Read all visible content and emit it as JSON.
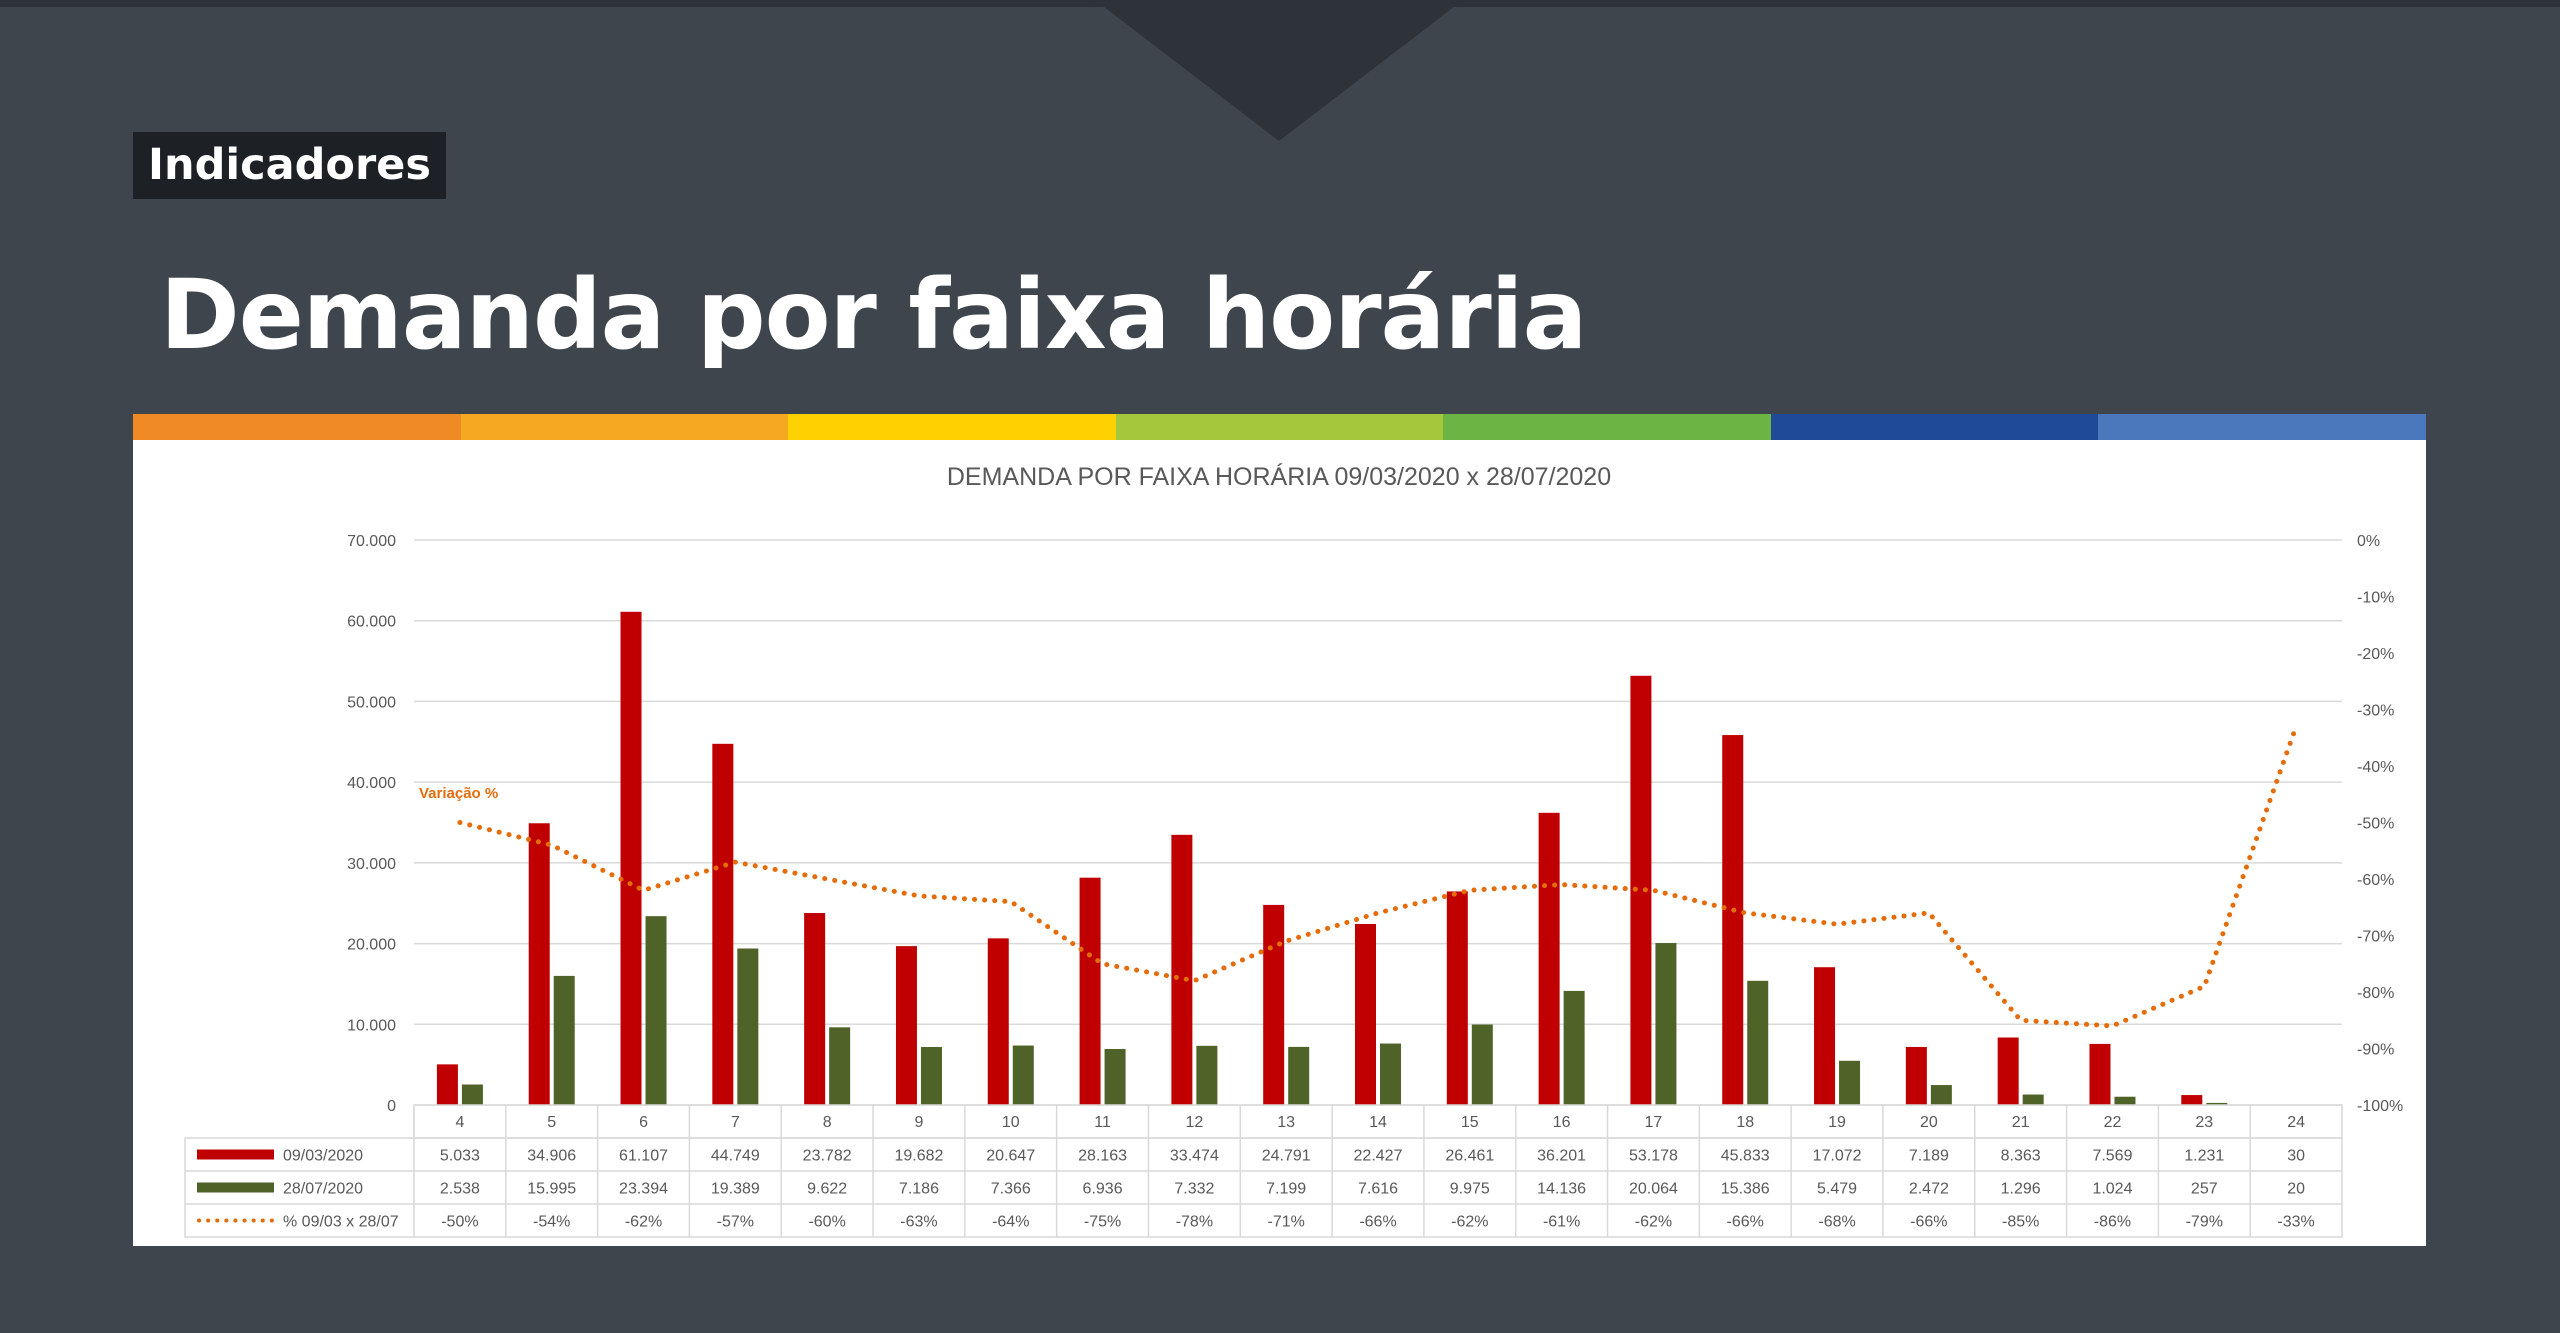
{
  "header": {
    "tag": "Indicadores",
    "title": "Demanda por faixa horária"
  },
  "stripe_colors": [
    "#f08a24",
    "#f7a823",
    "#ffd100",
    "#a5c73b",
    "#6cb545",
    "#1f4a97",
    "#4b77bc"
  ],
  "colors": {
    "series_2020_03": "#c00000",
    "series_2020_07": "#4f6228",
    "variation": "#e46c0a"
  },
  "chart_data": {
    "type": "bar",
    "title": "DEMANDA POR FAIXA HORÁRIA 09/03/2020 x 28/07/2020",
    "categories": [
      "4",
      "5",
      "6",
      "7",
      "8",
      "9",
      "10",
      "11",
      "12",
      "13",
      "14",
      "15",
      "16",
      "17",
      "18",
      "19",
      "20",
      "21",
      "22",
      "23",
      "24"
    ],
    "ylim": [
      0,
      70000
    ],
    "y_ticks": [
      "70.000",
      "60.000",
      "50.000",
      "40.000",
      "30.000",
      "20.000",
      "10.000",
      "0"
    ],
    "y2lim": [
      -100,
      0
    ],
    "y2_ticks": [
      "0%",
      "-10%",
      "-20%",
      "-30%",
      "-40%",
      "-50%",
      "-60%",
      "-70%",
      "-80%",
      "-90%",
      "-100%"
    ],
    "series": [
      {
        "name": "09/03/2020",
        "kind": "bar",
        "axis": "left",
        "values": [
          5033,
          34906,
          61107,
          44749,
          23782,
          19682,
          20647,
          28163,
          33474,
          24791,
          22427,
          26461,
          36201,
          53178,
          45833,
          17072,
          7189,
          8363,
          7569,
          1231,
          30
        ],
        "labels": [
          "5.033",
          "34.906",
          "61.107",
          "44.749",
          "23.782",
          "19.682",
          "20.647",
          "28.163",
          "33.474",
          "24.791",
          "22.427",
          "26.461",
          "36.201",
          "53.178",
          "45.833",
          "17.072",
          "7.189",
          "8.363",
          "7.569",
          "1.231",
          "30"
        ]
      },
      {
        "name": "28/07/2020",
        "kind": "bar",
        "axis": "left",
        "values": [
          2538,
          15995,
          23394,
          19389,
          9622,
          7186,
          7366,
          6936,
          7332,
          7199,
          7616,
          9975,
          14136,
          20064,
          15386,
          5479,
          2472,
          1296,
          1024,
          257,
          20
        ],
        "labels": [
          "2.538",
          "15.995",
          "23.394",
          "19.389",
          "9.622",
          "7.186",
          "7.366",
          "6.936",
          "7.332",
          "7.199",
          "7.616",
          "9.975",
          "14.136",
          "20.064",
          "15.386",
          "5.479",
          "2.472",
          "1.296",
          "1.024",
          "257",
          "20"
        ]
      },
      {
        "name": "% 09/03 x 28/07",
        "kind": "line",
        "axis": "right",
        "values": [
          -50,
          -54,
          -62,
          -57,
          -60,
          -63,
          -64,
          -75,
          -78,
          -71,
          -66,
          -62,
          -61,
          -62,
          -66,
          -68,
          -66,
          -85,
          -86,
          -79,
          -33
        ],
        "labels": [
          "-50%",
          "-54%",
          "-62%",
          "-57%",
          "-60%",
          "-63%",
          "-64%",
          "-75%",
          "-78%",
          "-71%",
          "-66%",
          "-62%",
          "-61%",
          "-62%",
          "-66%",
          "-68%",
          "-66%",
          "-85%",
          "-86%",
          "-79%",
          "-33%"
        ]
      }
    ],
    "annotation": "Variação %",
    "grid": true,
    "legend": "data-table"
  }
}
